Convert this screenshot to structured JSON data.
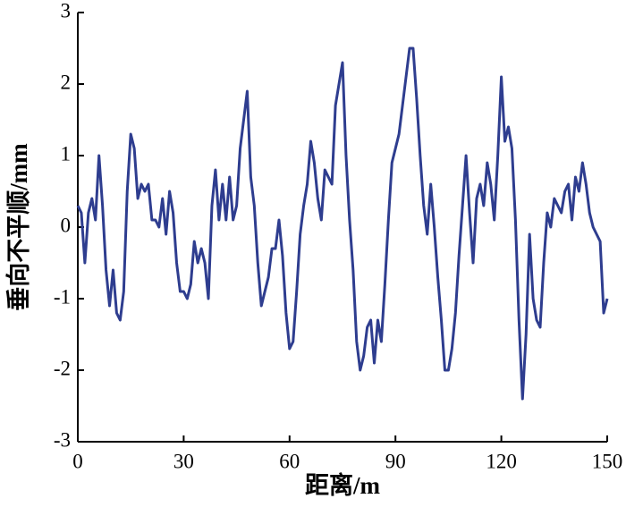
{
  "chart_data": {
    "type": "line",
    "x_label": "距离/m",
    "y_label": "垂向不平顺/mm",
    "color": "#2e3d8f",
    "x": [
      0,
      1,
      2,
      3,
      4,
      5,
      6,
      7,
      8,
      9,
      10,
      11,
      12,
      13,
      14,
      15,
      16,
      17,
      18,
      19,
      20,
      21,
      22,
      23,
      24,
      25,
      26,
      27,
      28,
      29,
      30,
      31,
      32,
      33,
      34,
      35,
      36,
      37,
      38,
      39,
      40,
      41,
      42,
      43,
      44,
      45,
      46,
      47,
      48,
      49,
      50,
      51,
      52,
      53,
      54,
      55,
      56,
      57,
      58,
      59,
      60,
      61,
      62,
      63,
      64,
      65,
      66,
      67,
      68,
      69,
      70,
      71,
      72,
      73,
      74,
      75,
      76,
      77,
      78,
      79,
      80,
      81,
      82,
      83,
      84,
      85,
      86,
      87,
      88,
      89,
      90,
      91,
      92,
      93,
      94,
      95,
      96,
      97,
      98,
      99,
      100,
      101,
      102,
      103,
      104,
      105,
      106,
      107,
      108,
      109,
      110,
      111,
      112,
      113,
      114,
      115,
      116,
      117,
      118,
      119,
      120,
      121,
      122,
      123,
      124,
      125,
      126,
      127,
      128,
      129,
      130,
      131,
      132,
      133,
      134,
      135,
      136,
      137,
      138,
      139,
      140,
      141,
      142,
      143,
      144,
      145,
      146,
      147,
      148,
      149,
      150
    ],
    "values": [
      0.3,
      0.2,
      -0.5,
      0.2,
      0.4,
      0.1,
      1.0,
      0.3,
      -0.6,
      -1.1,
      -0.6,
      -1.2,
      -1.3,
      -0.9,
      0.5,
      1.3,
      1.1,
      0.4,
      0.6,
      0.5,
      0.6,
      0.1,
      0.1,
      0.0,
      0.4,
      -0.1,
      0.5,
      0.2,
      -0.5,
      -0.9,
      -0.9,
      -1.0,
      -0.8,
      -0.2,
      -0.5,
      -0.3,
      -0.5,
      -1.0,
      0.3,
      0.8,
      0.1,
      0.6,
      0.1,
      0.7,
      0.1,
      0.3,
      1.1,
      1.5,
      1.9,
      0.7,
      0.3,
      -0.5,
      -1.1,
      -0.9,
      -0.7,
      -0.3,
      -0.3,
      0.1,
      -0.4,
      -1.2,
      -1.7,
      -1.6,
      -0.9,
      -0.1,
      0.3,
      0.6,
      1.2,
      0.9,
      0.4,
      0.1,
      0.8,
      0.7,
      0.6,
      1.7,
      2.0,
      2.3,
      1.0,
      0.1,
      -0.6,
      -1.6,
      -2.0,
      -1.8,
      -1.4,
      -1.3,
      -1.9,
      -1.3,
      -1.6,
      -0.8,
      0.1,
      0.9,
      1.1,
      1.3,
      1.7,
      2.1,
      2.5,
      2.5,
      1.8,
      1.0,
      0.3,
      -0.1,
      0.6,
      0.0,
      -0.7,
      -1.3,
      -2.0,
      -2.0,
      -1.7,
      -1.2,
      -0.4,
      0.3,
      1.0,
      0.2,
      -0.5,
      0.4,
      0.6,
      0.3,
      0.9,
      0.6,
      0.1,
      1.0,
      2.1,
      1.2,
      1.4,
      1.1,
      0.1,
      -1.3,
      -2.4,
      -1.5,
      -0.1,
      -1.0,
      -1.3,
      -1.4,
      -0.5,
      0.2,
      0.0,
      0.4,
      0.3,
      0.2,
      0.5,
      0.6,
      0.1,
      0.7,
      0.5,
      0.9,
      0.6,
      0.2,
      0.0,
      -0.1,
      -0.2,
      -1.2,
      -1.0
    ],
    "xlim": [
      0,
      150
    ],
    "xticks": [
      0,
      30,
      60,
      90,
      120,
      150
    ],
    "ylim": [
      -3,
      3
    ],
    "yticks": [
      -3,
      -2,
      -1,
      0,
      1,
      2,
      3
    ],
    "grid": false
  }
}
